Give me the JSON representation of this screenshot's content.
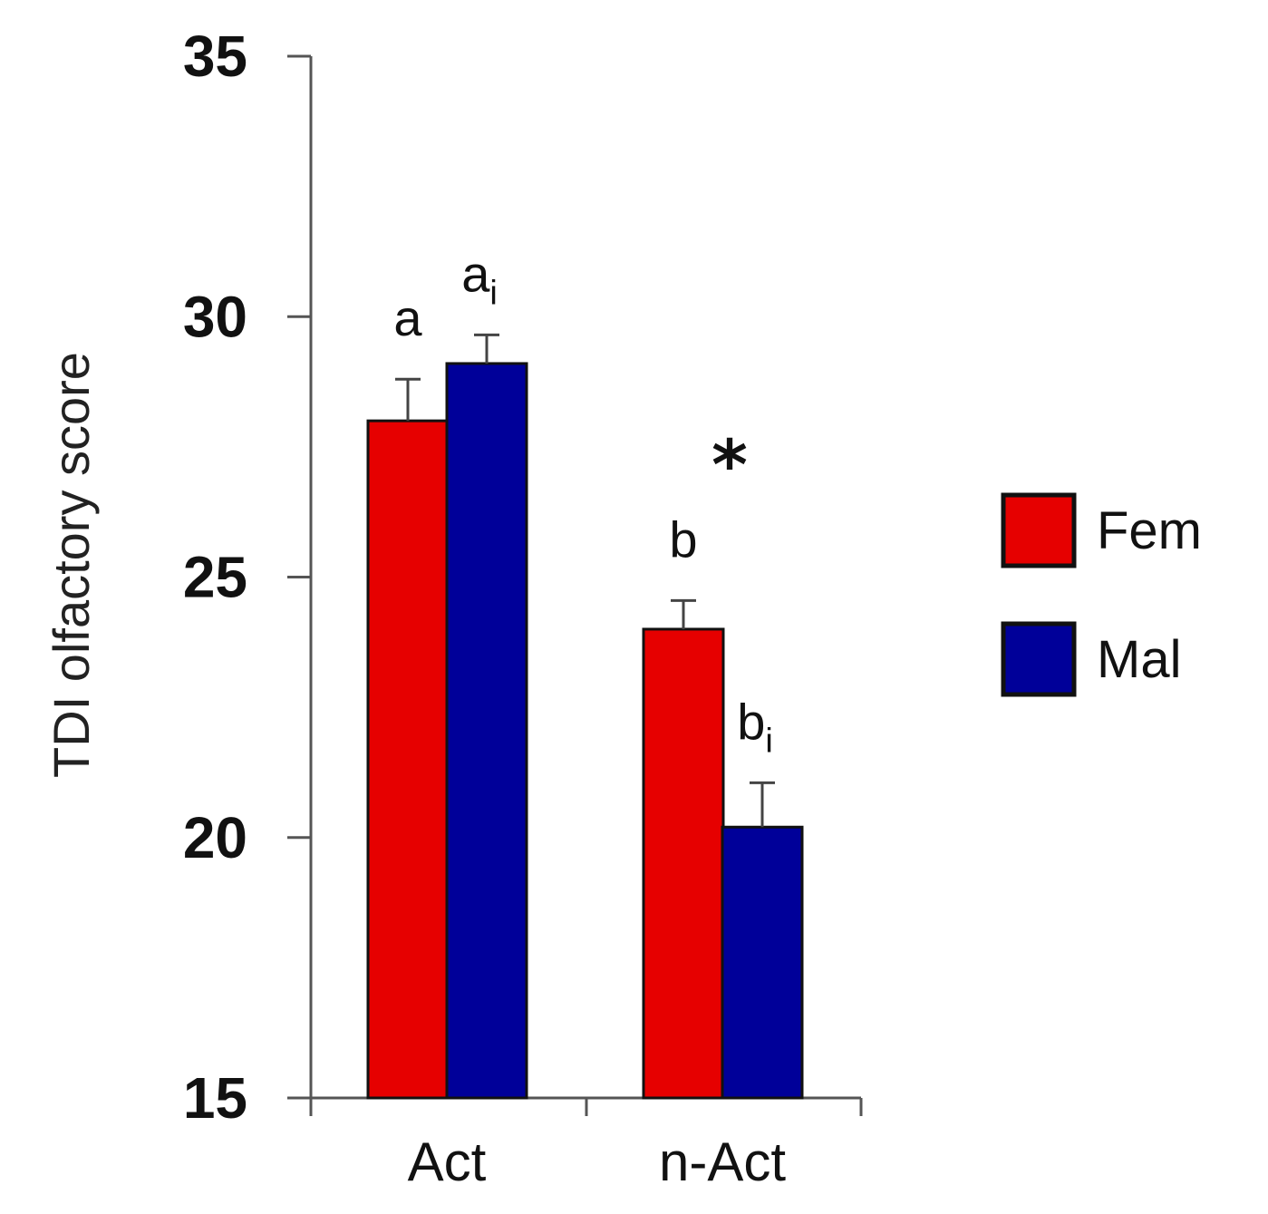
{
  "chart_data": {
    "type": "bar",
    "ylabel": "TDI olfactory score",
    "xlabel": "",
    "ylim": [
      15,
      35
    ],
    "yticks": [
      15,
      20,
      25,
      30,
      35
    ],
    "categories": [
      "Act",
      "n-Act"
    ],
    "series": [
      {
        "name": "Fem",
        "color": "#e60000",
        "values": [
          28.0,
          24.0
        ],
        "errors": [
          0.8,
          0.55
        ]
      },
      {
        "name": "Mal",
        "color": "#000099",
        "values": [
          29.1,
          20.2
        ],
        "errors": [
          0.55,
          0.85
        ]
      }
    ],
    "annotations": [
      {
        "text": "a",
        "sub": "",
        "category": 0,
        "series": 0
      },
      {
        "text": "a",
        "sub": "i",
        "category": 0,
        "series": 1
      },
      {
        "text": "b",
        "sub": "",
        "category": 1,
        "series": 0
      },
      {
        "text": "b",
        "sub": "i",
        "category": 1,
        "series": 1
      },
      {
        "text": "*",
        "sub": "",
        "category": 1,
        "series": -1
      }
    ],
    "legend": {
      "position": "right",
      "entries": [
        {
          "label": "Fem",
          "color": "#e60000"
        },
        {
          "label": "Mal",
          "color": "#000099"
        }
      ]
    },
    "grid": false
  }
}
